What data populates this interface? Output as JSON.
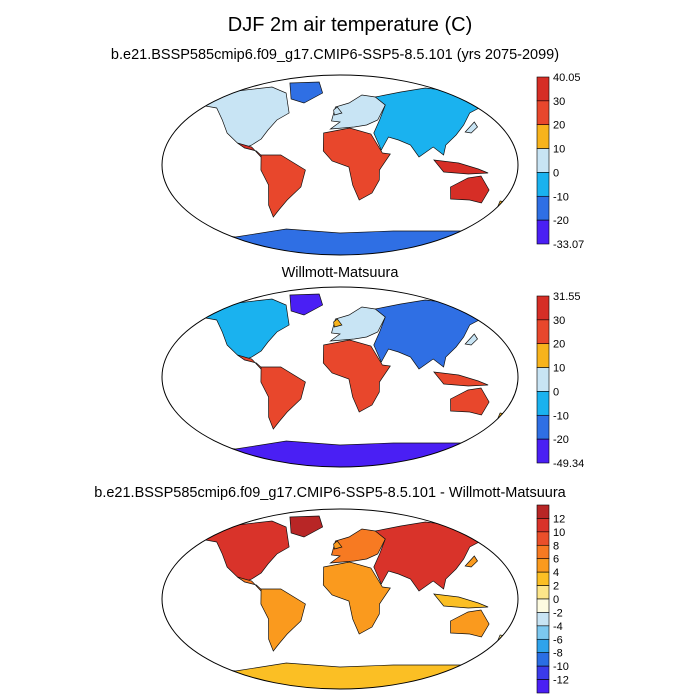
{
  "figure": {
    "title": "DJF 2m air temperature (C)"
  },
  "chart_data": [
    {
      "type": "heatmap",
      "title": "b.e21.BSSP585cmip6.f09_g17.CMIP6-SSP5-8.5.101 (yrs 2075-2099)",
      "projection": "Robinson",
      "grid": false,
      "legend_placement": "right",
      "colorbar": {
        "min_label": "-33.07",
        "max_label": "40.05",
        "ticks": [
          "30",
          "20",
          "10",
          "0",
          "-10",
          "-20"
        ],
        "colors": [
          "#d62e26",
          "#e8472c",
          "#f7b31c",
          "#c8e4f4",
          "#1ab2ef",
          "#2f6fe4",
          "#4a1ff4"
        ]
      }
    },
    {
      "type": "heatmap",
      "title": "Willmott-Matsuura",
      "projection": "Robinson",
      "grid": false,
      "legend_placement": "right",
      "colorbar": {
        "min_label": "-49.34",
        "max_label": "31.55",
        "ticks": [
          "30",
          "20",
          "10",
          "0",
          "-10",
          "-20"
        ],
        "colors": [
          "#d62e26",
          "#e8472c",
          "#f7b31c",
          "#c8e4f4",
          "#1ab2ef",
          "#2f6fe4",
          "#4a1ff4"
        ]
      }
    },
    {
      "type": "heatmap",
      "title": "b.e21.BSSP585cmip6.f09_g17.CMIP6-SSP5-8.5.101 - Willmott-Matsuura",
      "projection": "Robinson",
      "grid": false,
      "legend_placement": "right",
      "colorbar": {
        "ticks": [
          "12",
          "10",
          "8",
          "6",
          "4",
          "2",
          "0",
          "-2",
          "-4",
          "-6",
          "-8",
          "-10",
          "-12"
        ],
        "colors": [
          "#b82626",
          "#d9332a",
          "#ea4f2a",
          "#f77a22",
          "#fa9a1e",
          "#fbbf24",
          "#fde68a",
          "#fdfbe0",
          "#c8e4f4",
          "#7cc8f0",
          "#2fa3ec",
          "#2a6ee4",
          "#3b3bea",
          "#4a1ff4"
        ]
      }
    }
  ]
}
